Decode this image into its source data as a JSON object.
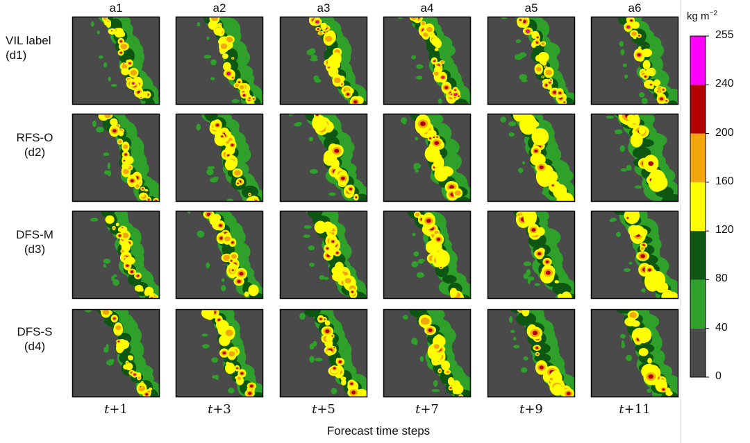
{
  "chart_data": {
    "type": "heatmap",
    "columns": [
      "a1",
      "a2",
      "a3",
      "a4",
      "a5",
      "a6"
    ],
    "rows": [
      {
        "name": "VIL label",
        "code": "(d1)"
      },
      {
        "name": "RFS-O",
        "code": "(d2)"
      },
      {
        "name": "DFS-M",
        "code": "(d3)"
      },
      {
        "name": "DFS-S",
        "code": "(d4)"
      }
    ],
    "time_steps": [
      {
        "var": "t",
        "offset": "+1"
      },
      {
        "var": "t",
        "offset": "+3"
      },
      {
        "var": "t",
        "offset": "+5"
      },
      {
        "var": "t",
        "offset": "+7"
      },
      {
        "var": "t",
        "offset": "+9"
      },
      {
        "var": "t",
        "offset": "+11"
      }
    ],
    "xlabel": "Forecast time steps",
    "colorbar": {
      "unit": "kg m",
      "unit_exp": "−2",
      "ticks": [
        0,
        40,
        80,
        120,
        160,
        200,
        240,
        255
      ],
      "levels": [
        {
          "from": 0,
          "to": 40,
          "color": "#4a4a4a"
        },
        {
          "from": 40,
          "to": 80,
          "color": "#2fa12a"
        },
        {
          "from": 80,
          "to": 120,
          "color": "#0d5712"
        },
        {
          "from": 120,
          "to": 160,
          "color": "#ffff00"
        },
        {
          "from": 160,
          "to": 200,
          "color": "#f2a60c"
        },
        {
          "from": 200,
          "to": 240,
          "color": "#b30000"
        },
        {
          "from": 240,
          "to": 255,
          "color": "#ff00ff"
        }
      ]
    },
    "background_color": "#4a4a4a"
  }
}
